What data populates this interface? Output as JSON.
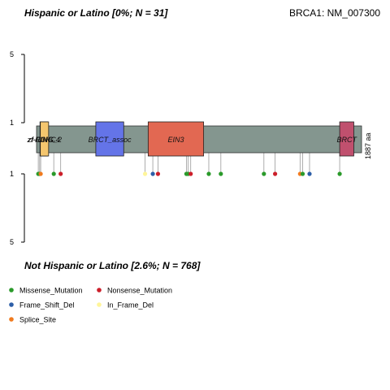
{
  "chart_data": {
    "type": "lollipop",
    "title_top": "Hispanic or Latino [0%; N = 31]",
    "title_bottom": "Not Hispanic or Latino [2.6%; N = 768]",
    "gene": "BRCA1: NM_007300",
    "protein_length": 1887,
    "protein_length_label": "1887 aa",
    "y_ticks_top": [
      "5",
      "1"
    ],
    "y_ticks_bottom": [
      "1",
      "5"
    ],
    "domains": [
      {
        "name": "zf-C3HC4",
        "label": "zf-C3HC4",
        "start": 20,
        "end": 65,
        "color": "#f5c66e"
      },
      {
        "name": "RING",
        "label": "RING",
        "start": 24,
        "end": 64,
        "color": "#f5c66e"
      },
      {
        "name": "zf-RING_2",
        "label": "zf-RING_2",
        "start": 22,
        "end": 70,
        "color": "#f5c66e"
      },
      {
        "name": "BRCT_assoc",
        "label": "BRCT_assoc",
        "start": 344,
        "end": 506,
        "color": "#6474e8"
      },
      {
        "name": "EIN3",
        "label": "EIN3",
        "start": 648,
        "end": 970,
        "color": "#e26852"
      },
      {
        "name": "BRCT",
        "label": "BRCT",
        "start": 1760,
        "end": 1842,
        "color": "#c0506e"
      }
    ],
    "mutations_bottom": [
      {
        "pos": 10,
        "count": 1,
        "type": "Missense_Mutation"
      },
      {
        "pos": 18,
        "count": 1,
        "type": "Missense_Mutation"
      },
      {
        "pos": 24,
        "count": 1,
        "type": "Splice_Site"
      },
      {
        "pos": 100,
        "count": 1,
        "type": "Missense_Mutation"
      },
      {
        "pos": 140,
        "count": 1,
        "type": "Nonsense_Mutation"
      },
      {
        "pos": 630,
        "count": 1,
        "type": "In_Frame_Del"
      },
      {
        "pos": 675,
        "count": 1,
        "type": "Frame_Shift_Del"
      },
      {
        "pos": 705,
        "count": 1,
        "type": "Nonsense_Mutation"
      },
      {
        "pos": 870,
        "count": 1,
        "type": "Missense_Mutation"
      },
      {
        "pos": 880,
        "count": 1,
        "type": "Missense_Mutation"
      },
      {
        "pos": 895,
        "count": 1,
        "type": "Nonsense_Mutation"
      },
      {
        "pos": 1000,
        "count": 1,
        "type": "Missense_Mutation"
      },
      {
        "pos": 1070,
        "count": 1,
        "type": "Missense_Mutation"
      },
      {
        "pos": 1320,
        "count": 1,
        "type": "Missense_Mutation"
      },
      {
        "pos": 1385,
        "count": 1,
        "type": "Nonsense_Mutation"
      },
      {
        "pos": 1530,
        "count": 1,
        "type": "Splice_Site"
      },
      {
        "pos": 1545,
        "count": 1,
        "type": "Missense_Mutation"
      },
      {
        "pos": 1585,
        "count": 1,
        "type": "Frame_Shift_Del"
      },
      {
        "pos": 1760,
        "count": 1,
        "type": "Missense_Mutation"
      }
    ],
    "legend": [
      {
        "label": "Missense_Mutation",
        "color": "#2a9a2a"
      },
      {
        "label": "Nonsense_Mutation",
        "color": "#cc1f2a"
      },
      {
        "label": "Frame_Shift_Del",
        "color": "#2d5fa8"
      },
      {
        "label": "In_Frame_Del",
        "color": "#fff59a"
      },
      {
        "label": "Splice_Site",
        "color": "#f07a1e"
      }
    ],
    "backbone_color": "#84968f"
  }
}
